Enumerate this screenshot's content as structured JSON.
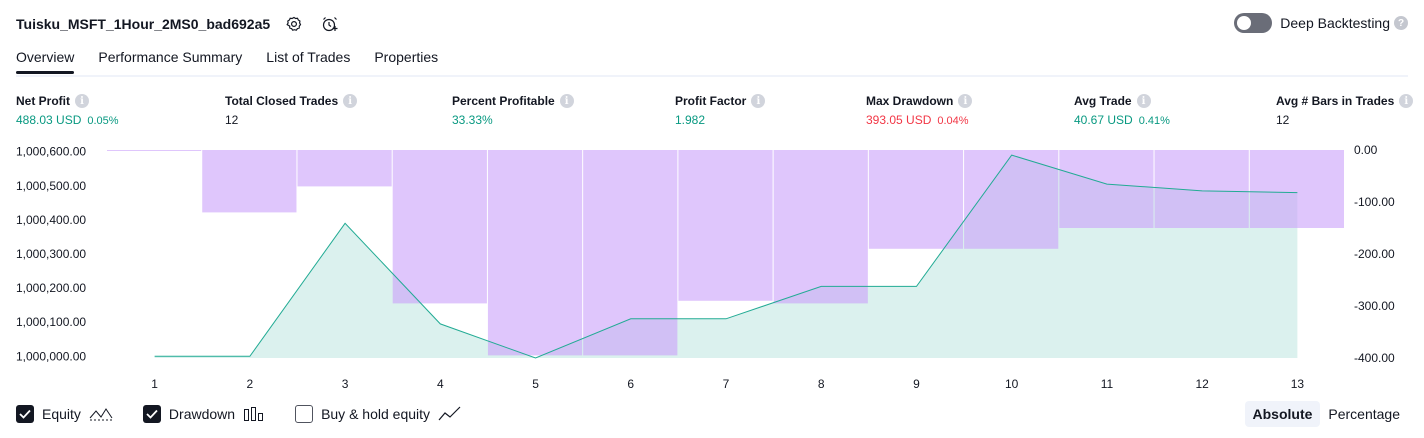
{
  "header": {
    "strategy_name": "Tuisku_MSFT_1Hour_2MS0_bad692a5",
    "deep_backtesting_label": "Deep Backtesting",
    "icons": [
      "settings-icon",
      "add-alert-icon",
      "toggle-icon",
      "help-icon"
    ]
  },
  "tabs": [
    {
      "label": "Overview",
      "active": true
    },
    {
      "label": "Performance Summary",
      "active": false
    },
    {
      "label": "List of Trades",
      "active": false
    },
    {
      "label": "Properties",
      "active": false
    }
  ],
  "metrics": [
    {
      "label": "Net Profit",
      "value": "488.03 USD",
      "pct": "0.05%",
      "color": "#089981"
    },
    {
      "label": "Total Closed Trades",
      "value": "12",
      "pct": "",
      "color": "#131722"
    },
    {
      "label": "Percent Profitable",
      "value": "33.33%",
      "pct": "",
      "color": "#089981"
    },
    {
      "label": "Profit Factor",
      "value": "1.982",
      "pct": "",
      "color": "#089981"
    },
    {
      "label": "Max Drawdown",
      "value": "393.05 USD",
      "pct": "0.04%",
      "color": "#f23645"
    },
    {
      "label": "Avg Trade",
      "value": "40.67 USD",
      "pct": "0.41%",
      "color": "#089981"
    },
    {
      "label": "Avg # Bars in Trades",
      "value": "12",
      "pct": "",
      "color": "#131722"
    }
  ],
  "chart_data": {
    "type": "line",
    "x": [
      1,
      2,
      3,
      4,
      5,
      6,
      7,
      8,
      9,
      10,
      11,
      12,
      13
    ],
    "x_ticks": [
      "1",
      "2",
      "3",
      "4",
      "5",
      "6",
      "7",
      "8",
      "9",
      "10",
      "11",
      "12",
      "13"
    ],
    "series": [
      {
        "name": "Equity",
        "axis": "left",
        "kind": "area",
        "values": [
          1000000,
          1000000,
          1000390,
          1000095,
          999995,
          1000110,
          1000110,
          1000205,
          1000205,
          1000590,
          1000505,
          1000485,
          1000480
        ],
        "color": "#22ab94"
      },
      {
        "name": "Drawdown",
        "axis": "right",
        "kind": "bar",
        "values": [
          -1,
          -120,
          -70,
          -295,
          -395,
          -395,
          -290,
          -295,
          -190,
          -190,
          -150,
          -150,
          -150
        ],
        "color": "#c9a0fa"
      }
    ],
    "left_axis": {
      "ylim": [
        999995,
        1000605
      ],
      "ticks": [
        "1,000,600.00",
        "1,000,500.00",
        "1,000,400.00",
        "1,000,300.00",
        "1,000,200.00",
        "1,000,100.00",
        "1,000,000.00"
      ],
      "tick_values": [
        1000600,
        1000500,
        1000400,
        1000300,
        1000200,
        1000100,
        1000000
      ]
    },
    "right_axis": {
      "ylim": [
        -400,
        0
      ],
      "ticks": [
        "0.00",
        "-100.00",
        "-200.00",
        "-300.00",
        "-400.00"
      ],
      "tick_values": [
        0,
        -100,
        -200,
        -300,
        -400
      ]
    },
    "grid": false,
    "legend_placement": "bottom-left"
  },
  "legend": [
    {
      "label": "Equity",
      "checked": true,
      "icon": "equity-line-icon"
    },
    {
      "label": "Drawdown",
      "checked": true,
      "icon": "drawdown-bars-icon"
    },
    {
      "label": "Buy & hold equity",
      "checked": false,
      "icon": "buy-hold-line-icon"
    }
  ],
  "modes": [
    {
      "label": "Absolute",
      "active": true
    },
    {
      "label": "Percentage",
      "active": false
    }
  ]
}
